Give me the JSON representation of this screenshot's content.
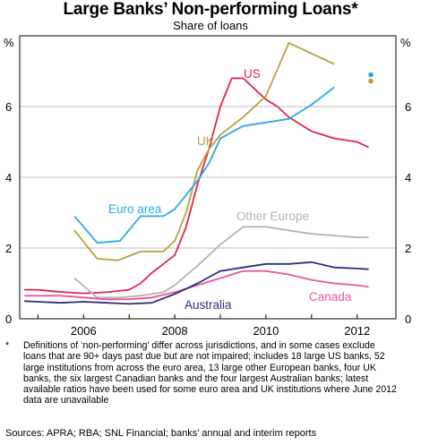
{
  "chart_data": {
    "type": "line",
    "title": "Large Banks’ Non-performing Loans*",
    "subtitle": "Share of loans",
    "ylabel_left": "%",
    "ylabel_right": "%",
    "ylim": [
      0,
      8
    ],
    "yticks": [
      0,
      2,
      4,
      6
    ],
    "xlim": [
      2004.6,
      2012.85
    ],
    "xticks": [
      2006,
      2008,
      2010,
      2012
    ],
    "xtick_labels": [
      "2006",
      "2008",
      "2010",
      "2012"
    ],
    "grid": "horizontal",
    "colors": {
      "US": "#e0234a",
      "UK": "#b8a13a",
      "Euro area": "#29a9e8",
      "Other Europe": "#b3b3b3",
      "Canada": "#e8559b",
      "Australia": "#2d2f7c"
    },
    "series": [
      {
        "name": "US",
        "x": [
          2004.7,
          2005.0,
          2005.3,
          2005.6,
          2006.0,
          2006.5,
          2007.0,
          2007.25,
          2007.5,
          2007.75,
          2008.0,
          2008.25,
          2008.5,
          2008.75,
          2009.0,
          2009.25,
          2009.5,
          2009.75,
          2010.0,
          2010.25,
          2010.5,
          2010.75,
          2011.0,
          2011.25,
          2011.5,
          2011.75,
          2012.0,
          2012.25
        ],
        "values": [
          0.82,
          0.82,
          0.78,
          0.75,
          0.72,
          0.75,
          0.82,
          1.0,
          1.3,
          1.55,
          1.8,
          2.6,
          3.8,
          4.8,
          6.0,
          6.8,
          6.8,
          6.5,
          6.2,
          6.0,
          5.7,
          5.5,
          5.3,
          5.2,
          5.1,
          5.05,
          5.0,
          4.85
        ]
      },
      {
        "name": "UK",
        "x": [
          2005.8,
          2006.3,
          2006.75,
          2007.25,
          2007.75,
          2008.0,
          2008.25,
          2008.5,
          2008.75,
          2009.0,
          2009.5,
          2010.0,
          2010.5,
          2011.0,
          2011.5
        ],
        "values": [
          2.5,
          1.7,
          1.65,
          1.9,
          1.9,
          2.2,
          3.0,
          4.2,
          4.8,
          5.2,
          5.7,
          6.3,
          7.8,
          7.5,
          7.2
        ]
      },
      {
        "name": "Euro area",
        "x": [
          2005.8,
          2006.3,
          2006.8,
          2007.25,
          2007.75,
          2008.0,
          2008.25,
          2008.5,
          2008.75,
          2009.0,
          2009.5,
          2010.0,
          2010.5,
          2011.0,
          2011.5
        ],
        "values": [
          2.9,
          2.15,
          2.2,
          2.9,
          2.9,
          3.1,
          3.5,
          3.9,
          4.4,
          5.1,
          5.45,
          5.55,
          5.65,
          6.05,
          6.55
        ]
      },
      {
        "name": "Other Europe",
        "x": [
          2005.8,
          2006.3,
          2006.8,
          2007.25,
          2007.75,
          2008.0,
          2008.5,
          2009.0,
          2009.5,
          2010.0,
          2010.5,
          2011.0,
          2011.5,
          2012.0,
          2012.25
        ],
        "values": [
          1.15,
          0.6,
          0.6,
          0.65,
          0.75,
          0.95,
          1.5,
          2.1,
          2.6,
          2.6,
          2.5,
          2.4,
          2.35,
          2.3,
          2.3
        ]
      },
      {
        "name": "Canada",
        "x": [
          2004.7,
          2005.0,
          2005.5,
          2006.0,
          2006.5,
          2007.0,
          2007.5,
          2008.0,
          2008.5,
          2009.0,
          2009.5,
          2010.0,
          2010.5,
          2011.0,
          2011.5,
          2012.0,
          2012.25
        ],
        "values": [
          0.65,
          0.65,
          0.65,
          0.6,
          0.55,
          0.55,
          0.6,
          0.75,
          0.95,
          1.15,
          1.35,
          1.35,
          1.25,
          1.1,
          1.0,
          0.95,
          0.9
        ]
      },
      {
        "name": "Australia",
        "x": [
          2004.7,
          2005.0,
          2005.5,
          2006.0,
          2006.5,
          2007.0,
          2007.5,
          2008.0,
          2008.5,
          2009.0,
          2009.5,
          2010.0,
          2010.5,
          2011.0,
          2011.5,
          2012.0,
          2012.25
        ],
        "values": [
          0.5,
          0.48,
          0.45,
          0.48,
          0.45,
          0.42,
          0.45,
          0.7,
          1.0,
          1.35,
          1.45,
          1.55,
          1.55,
          1.6,
          1.45,
          1.42,
          1.4
        ]
      }
    ],
    "markers": [
      {
        "series": "Euro area",
        "x": 2012.3,
        "y": 6.9
      },
      {
        "series": "UK",
        "x": 2012.3,
        "y": 6.72
      }
    ],
    "annotations": [
      {
        "text": "US",
        "series": "US"
      },
      {
        "text": "UK",
        "series": "UK"
      },
      {
        "text": "Euro area",
        "series": "Euro area"
      },
      {
        "text": "Other Europe",
        "series": "Other Europe"
      },
      {
        "text": "Canada",
        "series": "Canada"
      },
      {
        "text": "Australia",
        "series": "Australia"
      }
    ]
  },
  "footnote": "Definitions of ‘non-performing’ differ across jurisdictions, and in some cases exclude loans that are 90+ days past due but are not impaired; includes 18 large US banks, 52 large institutions from across the euro area, 13 large other European banks, four UK banks, the six largest Canadian banks and the four largest Australian banks; latest available ratios have been used for some euro area and UK institutions where June 2012 data are unavailable",
  "footnote_marker": "*",
  "sources": "Sources: APRA; RBA; SNL Financial; banks’ annual and interim reports"
}
